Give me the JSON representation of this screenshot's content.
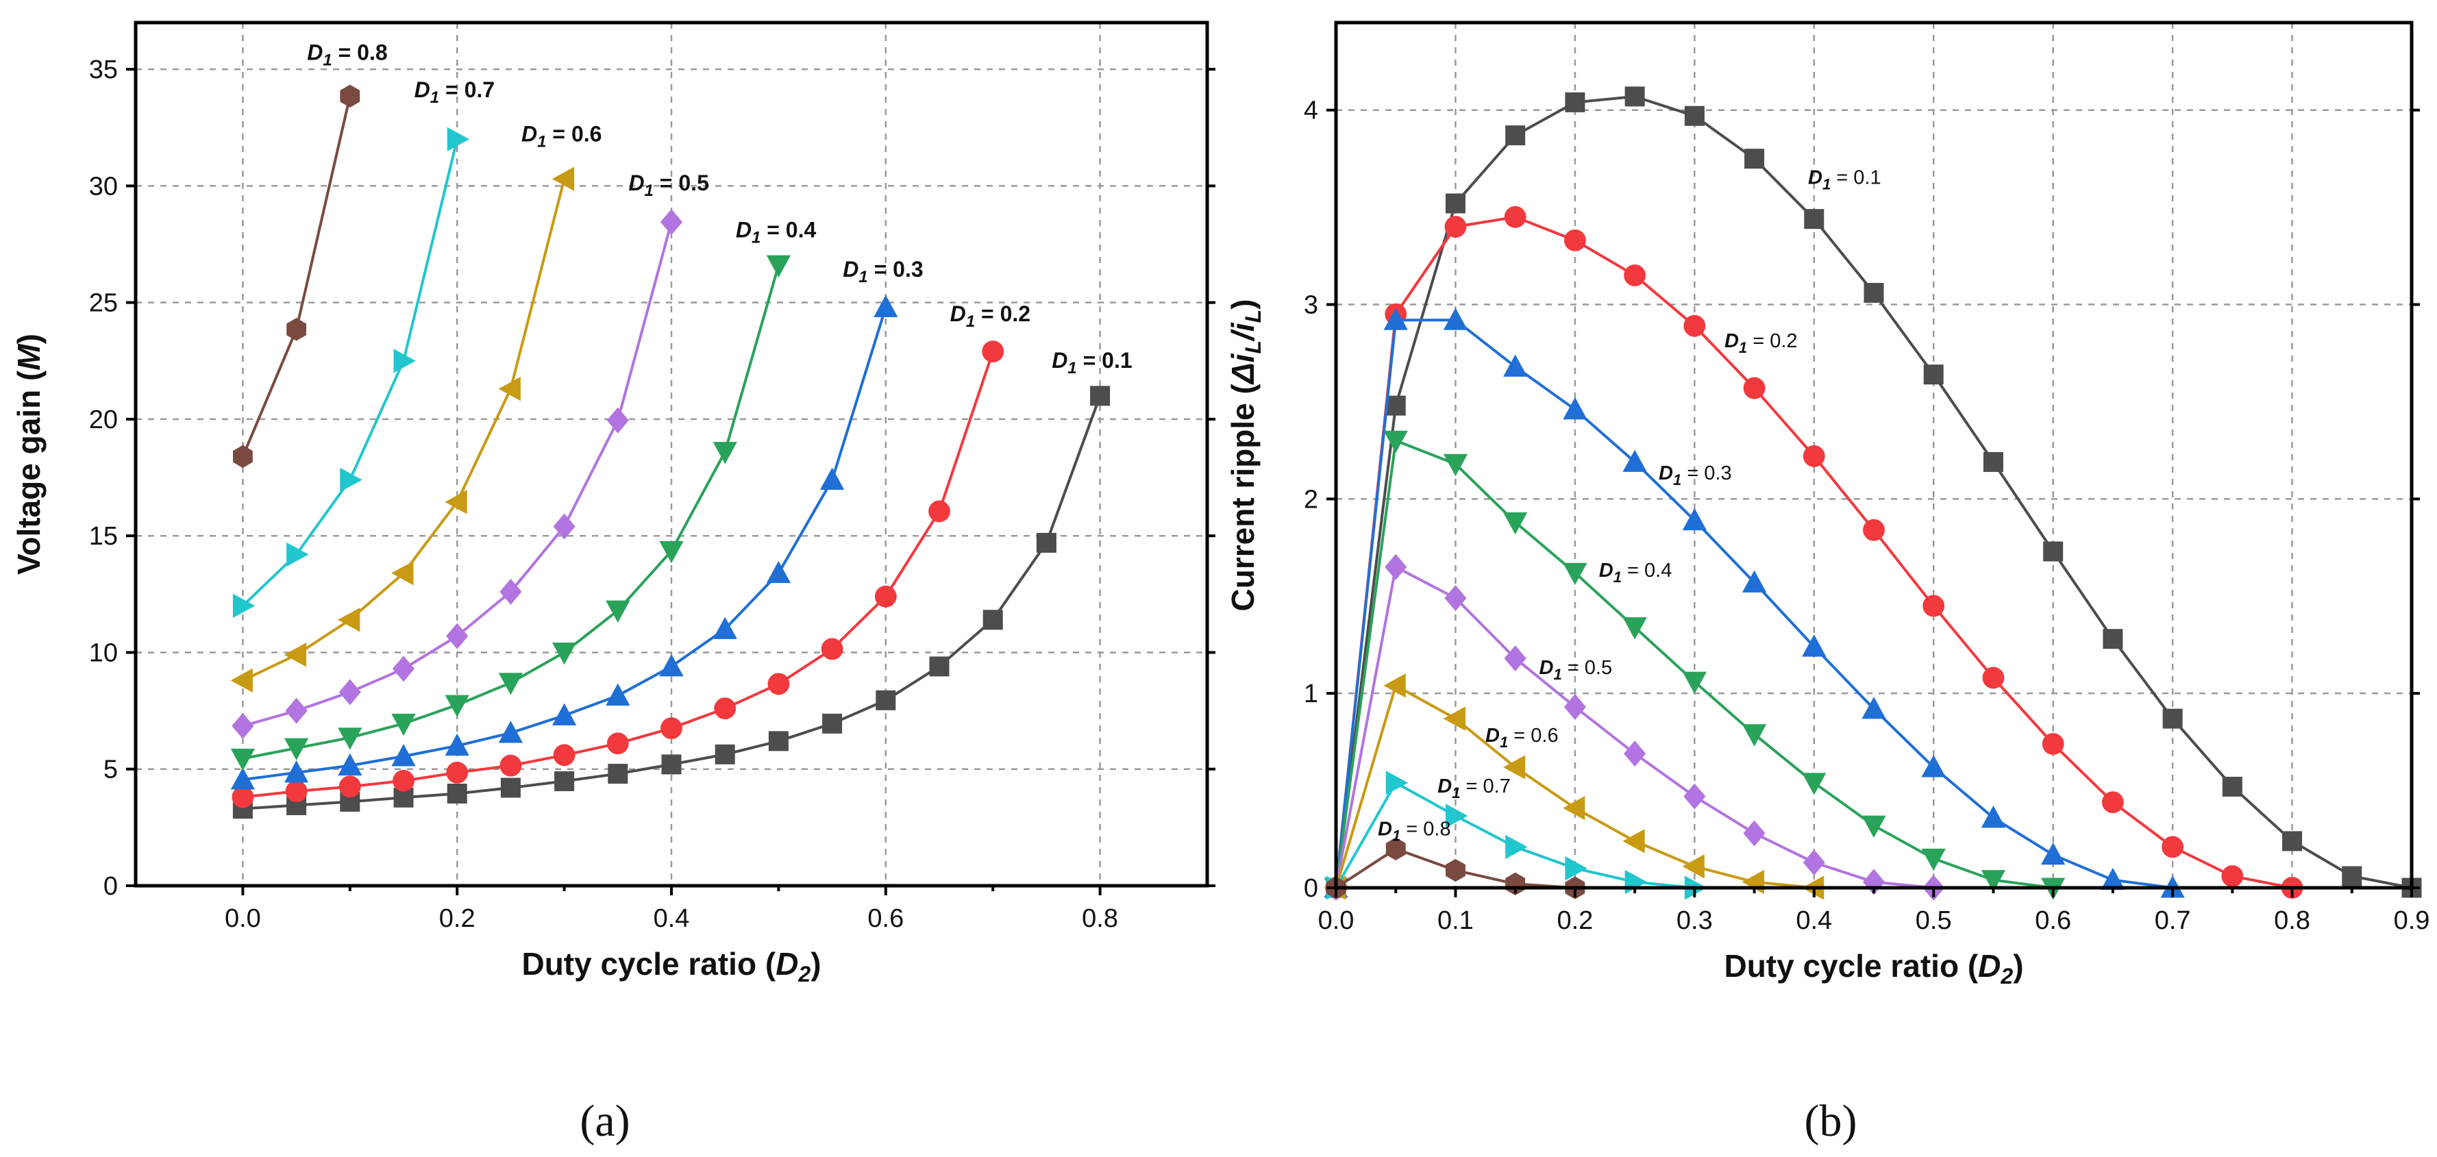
{
  "panel_labels": [
    "(a)",
    "(b)"
  ],
  "chart_data": [
    {
      "type": "line",
      "panel": "(a)",
      "title": "",
      "xlabel": "Duty cycle ratio (D2)",
      "ylabel": "Voltage gain (M)",
      "xlim": [
        -0.1,
        0.9
      ],
      "ylim": [
        0,
        37
      ],
      "xticks": [
        0.0,
        0.2,
        0.4,
        0.6,
        0.8
      ],
      "yticks": [
        0,
        5,
        10,
        15,
        20,
        25,
        30,
        35
      ],
      "grid": true,
      "series": [
        {
          "name": "D1 = 0.1",
          "label_d": "D",
          "label_sub": "1",
          "label_value": " = 0.1",
          "color": "#4d4d4d",
          "marker": "square",
          "x": [
            0.0,
            0.05,
            0.1,
            0.15,
            0.2,
            0.25,
            0.3,
            0.35,
            0.4,
            0.45,
            0.5,
            0.55,
            0.6,
            0.65,
            0.7,
            0.75,
            0.8
          ],
          "y": [
            3.3,
            3.45,
            3.6,
            3.78,
            3.95,
            4.2,
            4.48,
            4.8,
            5.2,
            5.63,
            6.2,
            6.95,
            7.95,
            9.4,
            11.4,
            14.7,
            21.0
          ]
        },
        {
          "name": "D1 = 0.2",
          "label_d": "D",
          "label_sub": "1",
          "label_value": " = 0.2",
          "color": "#f2393e",
          "marker": "circle",
          "x": [
            0.0,
            0.05,
            0.1,
            0.15,
            0.2,
            0.25,
            0.3,
            0.35,
            0.4,
            0.45,
            0.5,
            0.55,
            0.6,
            0.65,
            0.7
          ],
          "y": [
            3.8,
            4.05,
            4.25,
            4.5,
            4.85,
            5.15,
            5.6,
            6.1,
            6.75,
            7.6,
            8.65,
            10.15,
            12.4,
            16.05,
            22.9
          ]
        },
        {
          "name": "D1 = 0.3",
          "label_d": "D",
          "label_sub": "1",
          "label_value": " = 0.3",
          "color": "#1f6fd6",
          "marker": "triangle-up",
          "x": [
            0.0,
            0.05,
            0.1,
            0.15,
            0.2,
            0.25,
            0.3,
            0.35,
            0.4,
            0.45,
            0.5,
            0.55,
            0.6
          ],
          "y": [
            4.55,
            4.85,
            5.15,
            5.55,
            6.0,
            6.55,
            7.3,
            8.15,
            9.4,
            11.0,
            13.4,
            17.4,
            24.8
          ]
        },
        {
          "name": "D1 = 0.4",
          "label_d": "D",
          "label_sub": "1",
          "label_value": " = 0.4",
          "color": "#2aa35a",
          "marker": "triangle-down",
          "x": [
            0.0,
            0.05,
            0.1,
            0.15,
            0.2,
            0.25,
            0.3,
            0.35,
            0.4,
            0.45,
            0.5
          ],
          "y": [
            5.45,
            5.9,
            6.35,
            6.95,
            7.75,
            8.7,
            10.0,
            11.8,
            14.35,
            18.6,
            26.6
          ]
        },
        {
          "name": "D1 = 0.5",
          "label_d": "D",
          "label_sub": "1",
          "label_value": " = 0.5",
          "color": "#b274e0",
          "marker": "diamond",
          "x": [
            0.0,
            0.05,
            0.1,
            0.15,
            0.2,
            0.25,
            0.3,
            0.35,
            0.4
          ],
          "y": [
            6.85,
            7.5,
            8.3,
            9.3,
            10.7,
            12.6,
            15.4,
            19.95,
            28.45
          ]
        },
        {
          "name": "D1 = 0.6",
          "label_d": "D",
          "label_sub": "1",
          "label_value": " = 0.6",
          "color": "#c99a14",
          "marker": "triangle-left",
          "x": [
            0.0,
            0.05,
            0.1,
            0.15,
            0.2,
            0.25,
            0.3
          ],
          "y": [
            8.8,
            9.9,
            11.4,
            13.4,
            16.45,
            21.3,
            30.3
          ]
        },
        {
          "name": "D1 = 0.7",
          "label_d": "D",
          "label_sub": "1",
          "label_value": " = 0.7",
          "color": "#22c6cf",
          "marker": "triangle-right",
          "x": [
            0.0,
            0.05,
            0.1,
            0.15,
            0.2
          ],
          "y": [
            12.0,
            14.2,
            17.4,
            22.5,
            32.0
          ]
        },
        {
          "name": "D1 = 0.8",
          "label_d": "D",
          "label_sub": "1",
          "label_value": " = 0.8",
          "color": "#7a4a40",
          "marker": "hexagon",
          "x": [
            0.0,
            0.05,
            0.1
          ],
          "y": [
            18.4,
            23.85,
            33.85
          ]
        }
      ],
      "annotations": [
        {
          "series": 7,
          "x": 0.06,
          "y": 35.4
        },
        {
          "series": 6,
          "x": 0.16,
          "y": 33.8
        },
        {
          "series": 5,
          "x": 0.26,
          "y": 31.9
        },
        {
          "series": 4,
          "x": 0.36,
          "y": 29.8
        },
        {
          "series": 3,
          "x": 0.46,
          "y": 27.8
        },
        {
          "series": 2,
          "x": 0.56,
          "y": 26.1
        },
        {
          "series": 1,
          "x": 0.66,
          "y": 24.2
        },
        {
          "series": 0,
          "x": 0.755,
          "y": 22.2
        }
      ]
    },
    {
      "type": "line",
      "panel": "(b)",
      "title": "",
      "xlabel": "Duty cycle ratio (D2)",
      "ylabel": "Current ripple (ΔiL/iL)",
      "xlim": [
        0.0,
        0.9
      ],
      "ylim": [
        0,
        4.45
      ],
      "xticks": [
        0.0,
        0.1,
        0.2,
        0.3,
        0.4,
        0.5,
        0.6,
        0.7,
        0.8,
        0.9
      ],
      "yticks": [
        0,
        1,
        2,
        3,
        4
      ],
      "grid": true,
      "series": [
        {
          "name": "D1 = 0.1",
          "label_d": "D",
          "label_sub": "1",
          "label_value": " = 0.1",
          "color": "#4d4d4d",
          "marker": "square",
          "x": [
            0.0,
            0.05,
            0.1,
            0.15,
            0.2,
            0.25,
            0.3,
            0.35,
            0.4,
            0.45,
            0.5,
            0.55,
            0.6,
            0.65,
            0.7,
            0.75,
            0.8,
            0.85,
            0.9
          ],
          "y": [
            0.0,
            2.48,
            3.52,
            3.87,
            4.04,
            4.07,
            3.97,
            3.75,
            3.44,
            3.06,
            2.64,
            2.19,
            1.73,
            1.28,
            0.87,
            0.52,
            0.24,
            0.06,
            0.0
          ]
        },
        {
          "name": "D1 = 0.2",
          "label_d": "D",
          "label_sub": "1",
          "label_value": " = 0.2",
          "color": "#f2393e",
          "marker": "circle",
          "x": [
            0.0,
            0.05,
            0.1,
            0.15,
            0.2,
            0.25,
            0.3,
            0.35,
            0.4,
            0.45,
            0.5,
            0.55,
            0.6,
            0.65,
            0.7,
            0.75,
            0.8
          ],
          "y": [
            0.0,
            2.95,
            3.4,
            3.45,
            3.33,
            3.15,
            2.89,
            2.57,
            2.22,
            1.84,
            1.45,
            1.08,
            0.74,
            0.44,
            0.21,
            0.06,
            0.0
          ]
        },
        {
          "name": "D1 = 0.3",
          "label_d": "D",
          "label_sub": "1",
          "label_value": " = 0.3",
          "color": "#1f6fd6",
          "marker": "triangle-up",
          "x": [
            0.0,
            0.05,
            0.1,
            0.15,
            0.2,
            0.25,
            0.3,
            0.35,
            0.4,
            0.45,
            0.5,
            0.55,
            0.6,
            0.65,
            0.7
          ],
          "y": [
            0.0,
            2.92,
            2.92,
            2.68,
            2.46,
            2.19,
            1.89,
            1.57,
            1.24,
            0.92,
            0.62,
            0.36,
            0.17,
            0.04,
            0.0
          ]
        },
        {
          "name": "D1 = 0.4",
          "label_d": "D",
          "label_sub": "1",
          "label_value": " = 0.4",
          "color": "#2aa35a",
          "marker": "triangle-down",
          "x": [
            0.0,
            0.05,
            0.1,
            0.15,
            0.2,
            0.25,
            0.3,
            0.35,
            0.4,
            0.45,
            0.5,
            0.55,
            0.6
          ],
          "y": [
            0.0,
            2.3,
            2.18,
            1.88,
            1.62,
            1.34,
            1.06,
            0.79,
            0.54,
            0.32,
            0.15,
            0.04,
            0.0
          ]
        },
        {
          "name": "D1 = 0.5",
          "label_d": "D",
          "label_sub": "1",
          "label_value": " = 0.5",
          "color": "#b274e0",
          "marker": "diamond",
          "x": [
            0.0,
            0.05,
            0.1,
            0.15,
            0.2,
            0.25,
            0.3,
            0.35,
            0.4,
            0.45,
            0.5
          ],
          "y": [
            0.0,
            1.65,
            1.49,
            1.18,
            0.93,
            0.69,
            0.47,
            0.28,
            0.13,
            0.03,
            0.0
          ]
        },
        {
          "name": "D1 = 0.6",
          "label_d": "D",
          "label_sub": "1",
          "label_value": " = 0.6",
          "color": "#c99a14",
          "marker": "triangle-left",
          "x": [
            0.0,
            0.05,
            0.1,
            0.15,
            0.2,
            0.25,
            0.3,
            0.35,
            0.4
          ],
          "y": [
            0.0,
            1.04,
            0.87,
            0.62,
            0.41,
            0.24,
            0.11,
            0.03,
            0.0
          ]
        },
        {
          "name": "D1 = 0.7",
          "label_d": "D",
          "label_sub": "1",
          "label_value": " = 0.7",
          "color": "#22c6cf",
          "marker": "triangle-right",
          "x": [
            0.0,
            0.05,
            0.1,
            0.15,
            0.2,
            0.25,
            0.3
          ],
          "y": [
            0.0,
            0.54,
            0.37,
            0.21,
            0.1,
            0.03,
            0.0
          ]
        },
        {
          "name": "D1 = 0.8",
          "label_d": "D",
          "label_sub": "1",
          "label_value": " = 0.8",
          "color": "#7a4a40",
          "marker": "hexagon",
          "x": [
            0.0,
            0.05,
            0.1,
            0.15,
            0.2
          ],
          "y": [
            0.0,
            0.2,
            0.09,
            0.02,
            0.0
          ]
        }
      ],
      "annotations": [
        {
          "series": 0,
          "x": 0.395,
          "y": 3.62
        },
        {
          "series": 1,
          "x": 0.325,
          "y": 2.78
        },
        {
          "series": 2,
          "x": 0.27,
          "y": 2.1
        },
        {
          "series": 3,
          "x": 0.22,
          "y": 1.6
        },
        {
          "series": 4,
          "x": 0.17,
          "y": 1.1
        },
        {
          "series": 5,
          "x": 0.125,
          "y": 0.75
        },
        {
          "series": 6,
          "x": 0.085,
          "y": 0.49
        },
        {
          "series": 7,
          "x": 0.035,
          "y": 0.27
        }
      ]
    }
  ]
}
